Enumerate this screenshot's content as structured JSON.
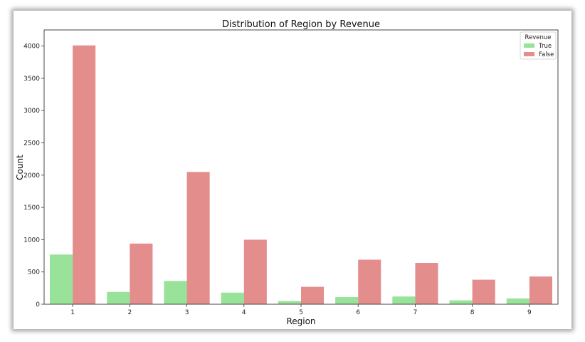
{
  "chart_data": {
    "type": "bar",
    "title": "Distribution of Region by Revenue",
    "xlabel": "Region",
    "ylabel": "Count",
    "categories": [
      "1",
      "2",
      "3",
      "4",
      "5",
      "6",
      "7",
      "8",
      "9"
    ],
    "series": [
      {
        "name": "True",
        "color": "#98e29a",
        "values": [
          770,
          190,
          360,
          180,
          50,
          110,
          120,
          60,
          90
        ]
      },
      {
        "name": "False",
        "color": "#e38d8d",
        "values": [
          4010,
          940,
          2050,
          1000,
          270,
          690,
          640,
          380,
          430
        ]
      }
    ],
    "ylim": [
      0,
      4250
    ],
    "yticks": [
      0,
      500,
      1000,
      1500,
      2000,
      2500,
      3000,
      3500,
      4000
    ],
    "legend": {
      "title": "Revenue",
      "position": "top-right"
    },
    "grid": false
  }
}
